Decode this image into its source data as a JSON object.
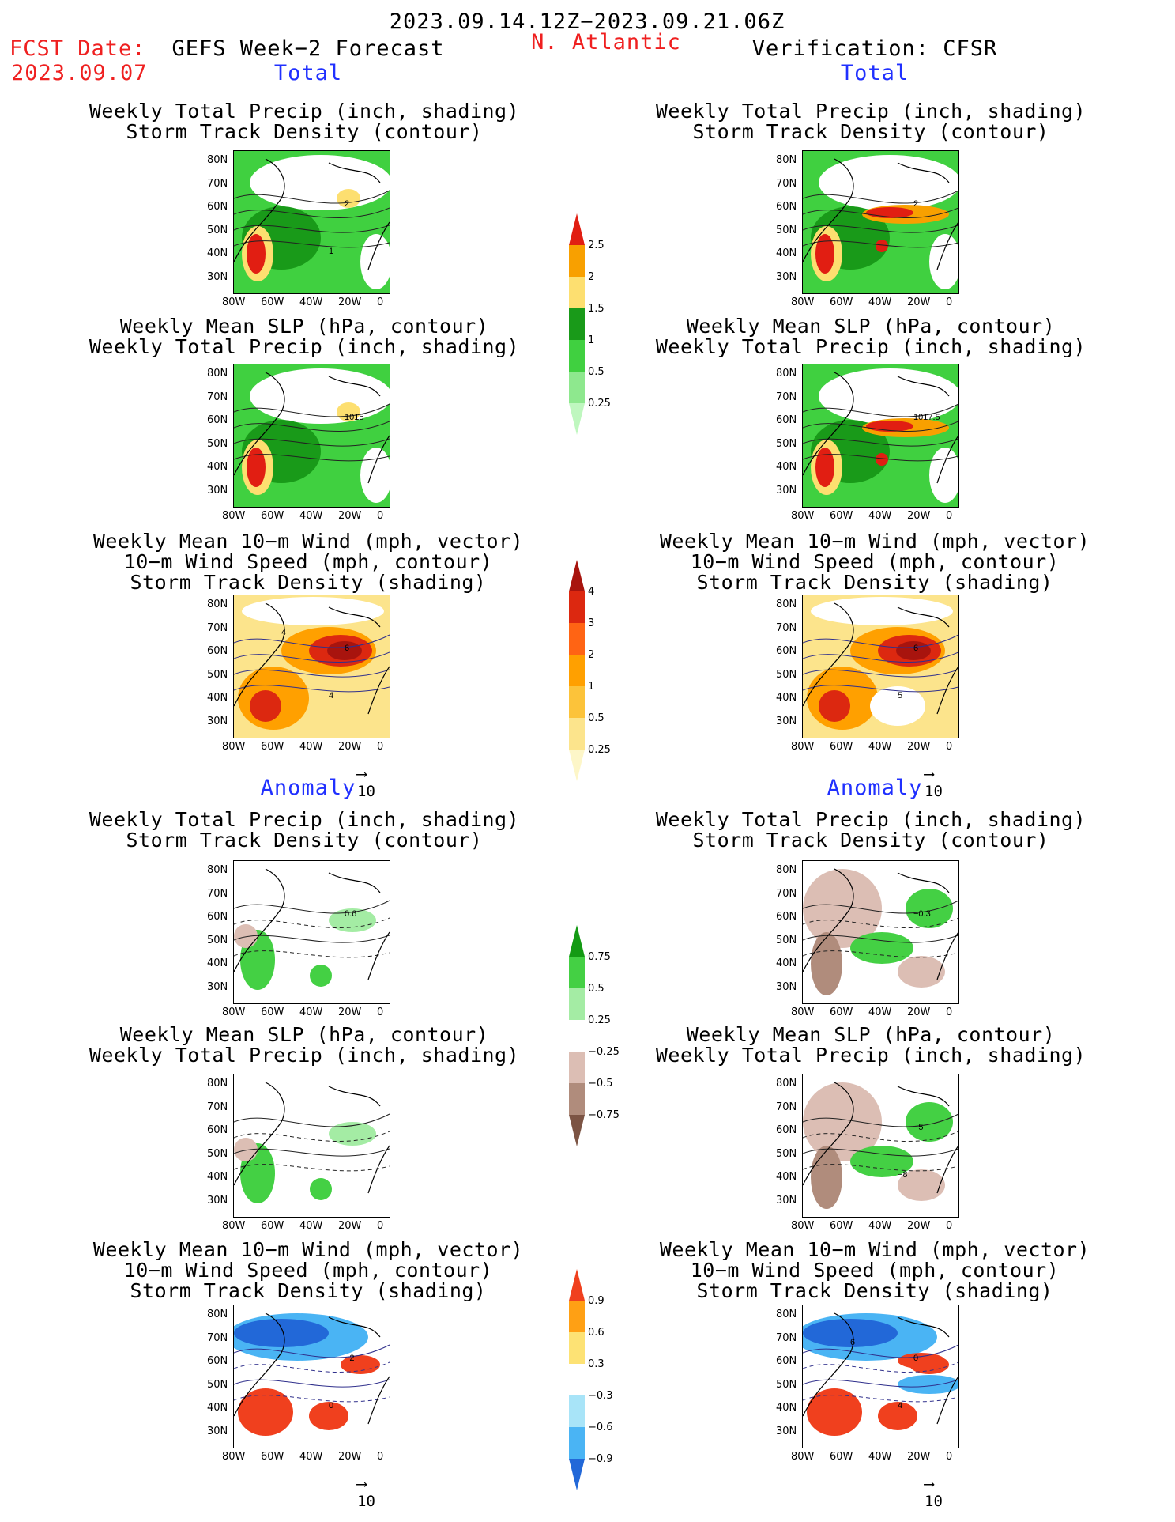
{
  "header": {
    "period": "2023.09.14.12Z−2023.09.21.06Z",
    "fcst_label": "FCST Date:",
    "fcst_date": "2023.09.07",
    "model": "GEFS Week−2 Forecast",
    "region": "N. Atlantic",
    "verification": "Verification: CFSR"
  },
  "sections": {
    "total_left": "Total",
    "total_right": "Total",
    "anomaly_left": "Anomaly",
    "anomaly_right": "Anomaly"
  },
  "titles": {
    "precip_storm": [
      "Weekly Total Precip (inch, shading)",
      "Storm Track Density (contour)"
    ],
    "slp_precip": [
      "Weekly Mean SLP (hPa, contour)",
      "Weekly Total Precip (inch, shading)"
    ],
    "wind": [
      "Weekly Mean 10−m Wind (mph, vector)",
      "10−m Wind Speed (mph, contour)",
      "Storm Track Density (shading)"
    ]
  },
  "axes": {
    "lat_ticks": [
      "80N",
      "70N",
      "60N",
      "50N",
      "40N",
      "30N"
    ],
    "lon_ticks": [
      "80W",
      "60W",
      "40W",
      "20W",
      "0"
    ]
  },
  "contour_labels": {
    "gefs_total_precip": [
      "2",
      "1"
    ],
    "cfsr_total_precip": [
      "2"
    ],
    "gefs_total_slp": "1015",
    "cfsr_total_slp": "1017.5",
    "gefs_total_wind": [
      "6",
      "4",
      "4"
    ],
    "cfsr_total_wind": [
      "6",
      "5"
    ],
    "gefs_anom_precip": "0.6",
    "cfsr_anom_precip": "−0.3",
    "cfsr_anom_slp": [
      "−5",
      "−8"
    ],
    "gefs_anom_wind": [
      "−2",
      "0"
    ],
    "cfsr_anom_wind": [
      "0",
      "4",
      "6"
    ]
  },
  "reference_vector": "10",
  "colorbars": {
    "precip_total": {
      "labels": [
        "2.5",
        "2",
        "1.5",
        "1",
        "0.5",
        "0.25"
      ],
      "colors": [
        "#e11e12",
        "#f8a000",
        "#fddf70",
        "#199a19",
        "#40d040",
        "#8ee88e",
        "#bff7bf"
      ]
    },
    "storm_total": {
      "labels": [
        "4",
        "3",
        "2",
        "1",
        "0.5",
        "0.25"
      ],
      "colors": [
        "#a8140e",
        "#dc2810",
        "#ff6414",
        "#ffa000",
        "#fcc33a",
        "#fce48c",
        "#fdf6c8"
      ]
    },
    "precip_anom": {
      "labels": [
        "0.75",
        "0.5",
        "0.25",
        "−0.25",
        "−0.5",
        "−0.75"
      ],
      "colors": [
        "#149a14",
        "#44d044",
        "#a4eca4",
        "#ffffff",
        "#dcbeb4",
        "#b08c7c",
        "#7c5444"
      ]
    },
    "storm_anom": {
      "labels": [
        "0.9",
        "0.6",
        "0.3",
        "−0.3",
        "−0.6",
        "−0.9"
      ],
      "colors": [
        "#f0401e",
        "#ffa014",
        "#fde274",
        "#ffffff",
        "#a8e4f8",
        "#4ab4f4",
        "#2268d8"
      ]
    }
  },
  "colors": {
    "red_text": "#ef2020",
    "blue_text": "#2030ff"
  }
}
